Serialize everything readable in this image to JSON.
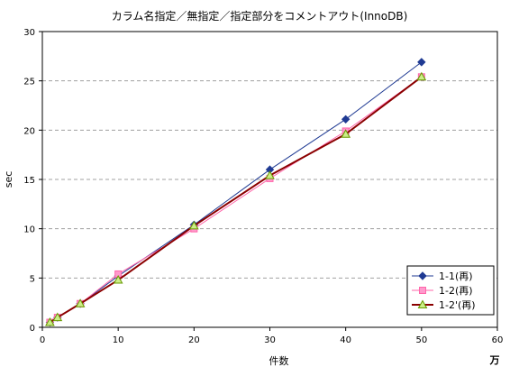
{
  "chart_data": {
    "type": "line",
    "title": "カラム名指定／無指定／指定部分をコメントアウト(InnoDB)",
    "xlabel": "件数",
    "x_unit_label": "万",
    "ylabel": "sec",
    "xlim": [
      0,
      60
    ],
    "ylim": [
      0,
      30
    ],
    "x_ticks": [
      "0",
      "10",
      "20",
      "30",
      "40",
      "50",
      "60"
    ],
    "y_ticks": [
      "0",
      "5",
      "10",
      "15",
      "20",
      "25",
      "30"
    ],
    "grid": "horizontal dashed",
    "legend_position": "bottom-right",
    "series": [
      {
        "name": "1-1(再)",
        "color": "#1f3a93",
        "marker": "diamond",
        "x": [
          1,
          2,
          5,
          10,
          20,
          30,
          40,
          50
        ],
        "y": [
          0.5,
          1.0,
          2.4,
          5.2,
          10.4,
          16.0,
          21.1,
          26.9
        ]
      },
      {
        "name": "1-2(再)",
        "color": "#ff66aa",
        "marker": "square",
        "x": [
          1,
          2,
          5,
          10,
          20,
          30,
          40,
          50
        ],
        "y": [
          0.5,
          1.0,
          2.4,
          5.4,
          10.0,
          15.1,
          19.9,
          25.4
        ]
      },
      {
        "name": "1-2'(再)",
        "color": "#8b0000",
        "marker": "triangle",
        "x": [
          1,
          2,
          5,
          10,
          20,
          30,
          40,
          50
        ],
        "y": [
          0.5,
          1.0,
          2.4,
          4.8,
          10.3,
          15.4,
          19.6,
          25.4
        ]
      }
    ]
  }
}
